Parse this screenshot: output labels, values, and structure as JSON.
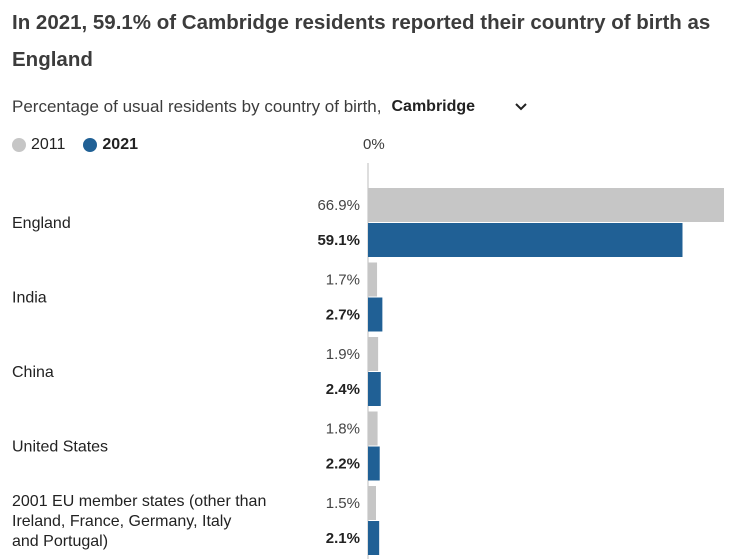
{
  "title": "In 2021, 59.1% of Cambridge residents reported their country of birth as England",
  "subtitle": "Percentage of usual residents by country of birth,",
  "area_select": {
    "selected": "Cambridge"
  },
  "legend": {
    "items": [
      {
        "label": "2011"
      },
      {
        "label": "2021"
      }
    ]
  },
  "axis": {
    "zero_label": "0%"
  },
  "colors": {
    "series_2011": "#c6c6c6",
    "series_2021": "#206095",
    "axis": "#bdbdbd"
  },
  "icons": {
    "select": "chevron-down-icon"
  },
  "chart_data": {
    "type": "bar",
    "orientation": "horizontal",
    "categories": [
      "England",
      "India",
      "China",
      "United States",
      "2001 EU member states (other than Ireland, France, Germany, Italy and Portugal)"
    ],
    "series": [
      {
        "name": "2011",
        "values": [
          66.9,
          1.7,
          1.9,
          1.8,
          1.5
        ],
        "labels": [
          "66.9%",
          "1.7%",
          "1.9%",
          "1.8%",
          "1.5%"
        ]
      },
      {
        "name": "2021",
        "values": [
          59.1,
          2.7,
          2.4,
          2.2,
          2.1
        ],
        "labels": [
          "59.1%",
          "2.7%",
          "2.4%",
          "2.2%",
          "2.1%"
        ]
      }
    ],
    "xlim": [
      0,
      66.9
    ],
    "grid": false,
    "legend_position": "top-left"
  }
}
